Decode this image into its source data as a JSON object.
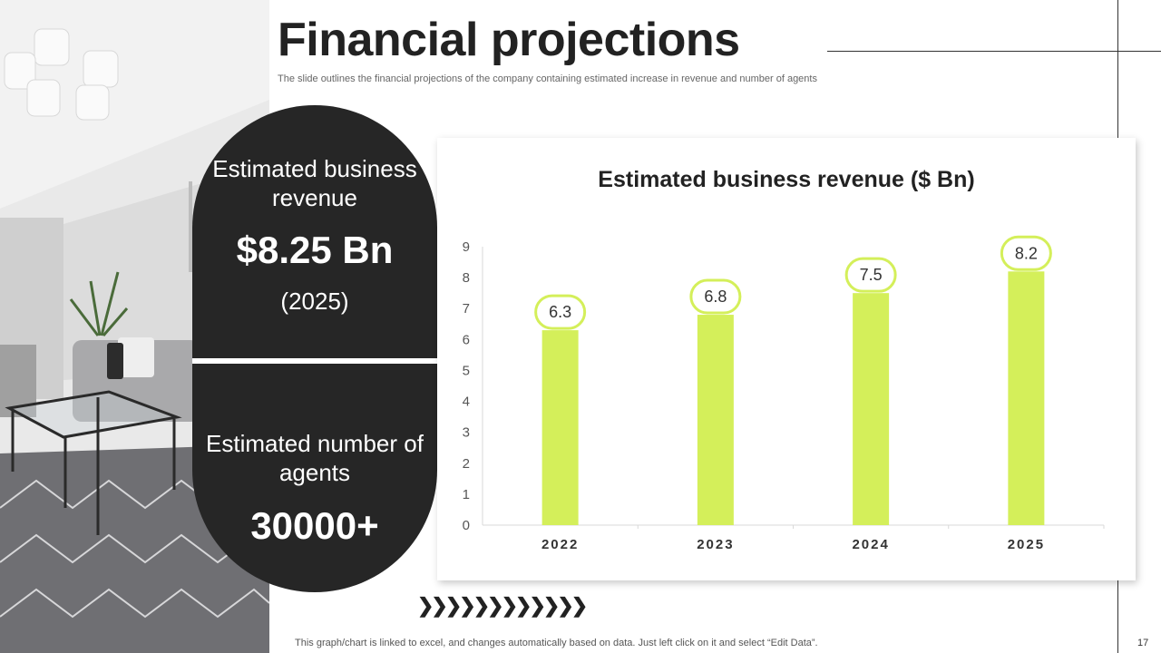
{
  "slide": {
    "title": "Financial projections",
    "subtitle": "The slide outlines the financial projections of the company containing estimated increase in revenue and number of agents",
    "footnote": "This graph/chart is linked to excel,  and changes automatically based on data. Just left click on it and select “Edit Data”.",
    "page_number": "17",
    "arrow_glyphs": "❯❯❯❯❯❯❯❯❯❯❯❯",
    "photo_icon": "living-room-photo"
  },
  "stats": {
    "revenue_label": "Estimated business revenue",
    "revenue_value": "$8.25 Bn",
    "revenue_year": "(2025)",
    "agents_label": "Estimated number of agents",
    "agents_value": "30000+"
  },
  "colors": {
    "bar": "#d4ef5a",
    "label_border": "#d4ef5a",
    "pill": "#262626"
  },
  "chart_data": {
    "type": "bar",
    "title": "Estimated business revenue ($ Bn)",
    "categories": [
      "2022",
      "2023",
      "2024",
      "2025"
    ],
    "values": [
      6.3,
      6.8,
      7.5,
      8.2
    ],
    "y_ticks": [
      0,
      1,
      2,
      3,
      4,
      5,
      6,
      7,
      8,
      9
    ],
    "ylim": [
      0,
      9
    ],
    "xlabel": "",
    "ylabel": "",
    "grid": false,
    "data_labels": true
  }
}
